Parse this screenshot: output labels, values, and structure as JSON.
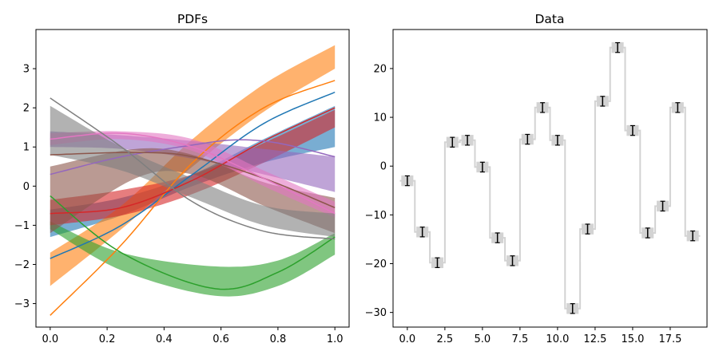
{
  "chart_data": [
    {
      "type": "area",
      "title": "PDFs",
      "xlabel": "",
      "ylabel": "",
      "xlim": [
        -0.05,
        1.05
      ],
      "ylim": [
        -3.6,
        4.0
      ],
      "xticks": [
        0.0,
        0.2,
        0.4,
        0.6,
        0.8,
        1.0
      ],
      "xtick_labels": [
        "0.0",
        "0.2",
        "0.4",
        "0.6",
        "0.8",
        "1.0"
      ],
      "yticks": [
        -3,
        -2,
        -1,
        0,
        1,
        2,
        3
      ],
      "ytick_labels": [
        "−3",
        "−2",
        "−1",
        "0",
        "1",
        "2",
        "3"
      ],
      "grid": false,
      "series": [
        {
          "color": "#1f77b4",
          "line": [
            [
              0,
              -1.85
            ],
            [
              0.25,
              -1.0
            ],
            [
              0.5,
              0.3
            ],
            [
              0.75,
              1.6
            ],
            [
              1.0,
              2.4
            ]
          ],
          "band_upper": [
            [
              0,
              -0.6
            ],
            [
              0.25,
              -0.3
            ],
            [
              0.5,
              0.3
            ],
            [
              0.75,
              1.2
            ],
            [
              1.0,
              2.05
            ]
          ],
          "band_lower": [
            [
              0,
              -1.3
            ],
            [
              0.25,
              -0.75
            ],
            [
              0.5,
              0.0
            ],
            [
              0.75,
              0.6
            ],
            [
              1.0,
              1.0
            ]
          ]
        },
        {
          "color": "#ff7f0e",
          "line": [
            [
              0,
              -3.3
            ],
            [
              0.25,
              -1.5
            ],
            [
              0.5,
              0.6
            ],
            [
              0.75,
              2.0
            ],
            [
              1.0,
              2.7
            ]
          ],
          "band_upper": [
            [
              0,
              -1.7
            ],
            [
              0.25,
              -0.5
            ],
            [
              0.5,
              1.2
            ],
            [
              0.75,
              2.6
            ],
            [
              1.0,
              3.6
            ]
          ],
          "band_lower": [
            [
              0,
              -2.55
            ],
            [
              0.25,
              -1.1
            ],
            [
              0.5,
              0.5
            ],
            [
              0.75,
              1.9
            ],
            [
              1.0,
              3.0
            ]
          ]
        },
        {
          "color": "#2ca02c",
          "line": [
            [
              0,
              -0.25
            ],
            [
              0.25,
              -1.7
            ],
            [
              0.58,
              -2.62
            ],
            [
              0.8,
              -2.2
            ],
            [
              1.0,
              -1.3
            ]
          ],
          "band_upper": [
            [
              0,
              -0.9
            ],
            [
              0.25,
              -1.7
            ],
            [
              0.58,
              -2.05
            ],
            [
              0.8,
              -1.9
            ],
            [
              1.0,
              -1.2
            ]
          ],
          "band_lower": [
            [
              0,
              -1.1
            ],
            [
              0.25,
              -2.15
            ],
            [
              0.58,
              -2.8
            ],
            [
              0.8,
              -2.55
            ],
            [
              1.0,
              -1.75
            ]
          ]
        },
        {
          "color": "#d62728",
          "line": [
            [
              0,
              -0.7
            ],
            [
              0.25,
              -0.55
            ],
            [
              0.5,
              0.15
            ],
            [
              0.75,
              1.15
            ],
            [
              1.0,
              2.0
            ]
          ],
          "band_upper": [
            [
              0,
              -0.35
            ],
            [
              0.25,
              -0.1
            ],
            [
              0.5,
              0.3
            ],
            [
              0.75,
              1.1
            ],
            [
              1.0,
              1.95
            ]
          ],
          "band_lower": [
            [
              0,
              -1.0
            ],
            [
              0.25,
              -0.75
            ],
            [
              0.5,
              -0.2
            ],
            [
              0.75,
              0.6
            ],
            [
              1.0,
              1.5
            ]
          ]
        },
        {
          "color": "#9467bd",
          "line": [
            [
              0,
              0.3
            ],
            [
              0.25,
              0.75
            ],
            [
              0.5,
              1.05
            ],
            [
              0.65,
              1.18
            ],
            [
              0.8,
              1.1
            ],
            [
              1.0,
              0.75
            ]
          ],
          "band_upper": [
            [
              0,
              1.4
            ],
            [
              0.25,
              1.3
            ],
            [
              0.5,
              1.15
            ],
            [
              0.75,
              0.95
            ],
            [
              1.0,
              0.75
            ]
          ],
          "band_lower": [
            [
              0,
              1.0
            ],
            [
              0.25,
              0.95
            ],
            [
              0.5,
              0.7
            ],
            [
              0.75,
              0.3
            ],
            [
              1.0,
              -0.15
            ]
          ]
        },
        {
          "color": "#8c564b",
          "line": [
            [
              0,
              0.8
            ],
            [
              0.3,
              0.86
            ],
            [
              0.5,
              0.75
            ],
            [
              0.75,
              0.2
            ],
            [
              1.0,
              -0.55
            ]
          ],
          "band_upper": [
            [
              0,
              0.5
            ],
            [
              0.3,
              0.95
            ],
            [
              0.5,
              0.8
            ],
            [
              0.75,
              0.1
            ],
            [
              1.0,
              -0.3
            ]
          ],
          "band_lower": [
            [
              0,
              -1.2
            ],
            [
              0.3,
              0.2
            ],
            [
              0.5,
              0.3
            ],
            [
              0.75,
              -0.5
            ],
            [
              1.0,
              -1.2
            ]
          ]
        },
        {
          "color": "#e377c2",
          "line": [
            [
              0,
              1.2
            ],
            [
              0.25,
              1.35
            ],
            [
              0.5,
              1.0
            ],
            [
              0.75,
              0.2
            ],
            [
              1.0,
              -0.7
            ]
          ],
          "band_upper": [
            [
              0,
              1.35
            ],
            [
              0.25,
              1.4
            ],
            [
              0.5,
              1.2
            ],
            [
              0.75,
              0.4
            ],
            [
              1.0,
              -0.4
            ]
          ],
          "band_lower": [
            [
              0,
              1.05
            ],
            [
              0.25,
              1.2
            ],
            [
              0.5,
              0.9
            ],
            [
              0.75,
              0.0
            ],
            [
              1.0,
              -0.8
            ]
          ]
        },
        {
          "color": "#7f7f7f",
          "line": [
            [
              0,
              2.25
            ],
            [
              0.25,
              1.0
            ],
            [
              0.5,
              -0.4
            ],
            [
              0.75,
              -1.15
            ],
            [
              1.0,
              -1.35
            ]
          ],
          "band_upper": [
            [
              0,
              2.05
            ],
            [
              0.25,
              1.0
            ],
            [
              0.5,
              0.2
            ],
            [
              0.75,
              -0.5
            ],
            [
              1.0,
              -0.7
            ]
          ],
          "band_lower": [
            [
              0,
              0.8
            ],
            [
              0.25,
              0.4
            ],
            [
              0.5,
              -0.3
            ],
            [
              0.75,
              -1.0
            ],
            [
              1.0,
              -1.3
            ]
          ]
        }
      ]
    },
    {
      "type": "bar",
      "title": "Data",
      "xlabel": "",
      "ylabel": "",
      "xlim": [
        -0.95,
        19.95
      ],
      "ylim": [
        -33,
        28
      ],
      "xticks": [
        0.0,
        2.5,
        5.0,
        7.5,
        10.0,
        12.5,
        15.0,
        17.5
      ],
      "xtick_labels": [
        "0.0",
        "2.5",
        "5.0",
        "7.5",
        "10.0",
        "12.5",
        "15.0",
        "17.5"
      ],
      "yticks": [
        -30,
        -20,
        -10,
        0,
        10,
        20
      ],
      "ytick_labels": [
        "−30",
        "−20",
        "−10",
        "0",
        "10",
        "20"
      ],
      "grid": false,
      "x": [
        0,
        1,
        2,
        3,
        4,
        5,
        6,
        7,
        8,
        9,
        10,
        11,
        12,
        13,
        14,
        15,
        16,
        17,
        18,
        19
      ],
      "values": [
        -3,
        -13.5,
        -19.8,
        4.9,
        5.3,
        -0.2,
        -14.7,
        -19.4,
        5.5,
        12.0,
        5.3,
        -29.2,
        -12.9,
        13.3,
        24.3,
        7.3,
        -13.7,
        -8.2,
        12.0,
        -14.3
      ],
      "error": [
        1.0,
        1.0,
        1.0,
        1.0,
        1.0,
        1.0,
        1.0,
        1.0,
        1.0,
        1.0,
        1.0,
        1.0,
        1.0,
        1.0,
        1.0,
        1.0,
        1.0,
        1.0,
        1.0,
        1.0
      ],
      "step_color": "#d3d3d3",
      "error_color": "#000000"
    }
  ]
}
